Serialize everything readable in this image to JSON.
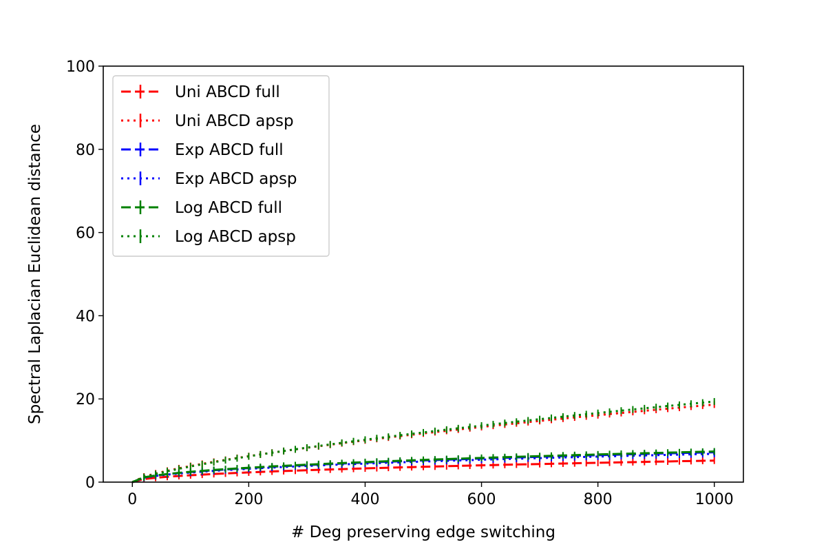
{
  "chart_data": {
    "type": "line",
    "title": "",
    "xlabel": "# Deg preserving edge switching",
    "ylabel": "Spectral Laplacian Euclidean distance",
    "xlim": [
      -50,
      1050
    ],
    "ylim": [
      0,
      100
    ],
    "xticks": [
      0,
      200,
      400,
      600,
      800,
      1000
    ],
    "yticks": [
      0,
      20,
      40,
      60,
      80,
      100
    ],
    "grid": false,
    "legend_position": "top-left",
    "x": [
      0,
      20,
      40,
      60,
      80,
      100,
      120,
      140,
      160,
      180,
      200,
      220,
      240,
      260,
      280,
      300,
      320,
      340,
      360,
      380,
      400,
      420,
      440,
      460,
      480,
      500,
      520,
      540,
      560,
      580,
      600,
      620,
      640,
      660,
      680,
      700,
      720,
      740,
      760,
      780,
      800,
      820,
      840,
      860,
      880,
      900,
      920,
      940,
      960,
      980,
      1000
    ],
    "series": [
      {
        "name": "Uni ABCD full",
        "color": "#ff0000",
        "linestyle": "dashed",
        "values": [
          0.0,
          0.74,
          1.05,
          1.28,
          1.48,
          1.65,
          1.8,
          1.95,
          2.08,
          2.21,
          2.33,
          2.45,
          2.56,
          2.66,
          2.76,
          2.86,
          2.95,
          3.04,
          3.13,
          3.22,
          3.3,
          3.38,
          3.46,
          3.54,
          3.61,
          3.69,
          3.76,
          3.83,
          3.9,
          3.97,
          4.04,
          4.1,
          4.17,
          4.23,
          4.29,
          4.35,
          4.41,
          4.47,
          4.53,
          4.59,
          4.65,
          4.7,
          4.76,
          4.81,
          4.87,
          4.92,
          4.97,
          5.03,
          5.08,
          5.13,
          5.18
        ]
      },
      {
        "name": "Uni ABCD apsp",
        "color": "#ff0000",
        "linestyle": "dotted",
        "values": [
          0.0,
          1.33,
          2.08,
          2.73,
          3.32,
          3.87,
          4.39,
          4.88,
          5.35,
          5.8,
          6.24,
          6.66,
          7.07,
          7.47,
          7.87,
          8.25,
          8.62,
          8.99,
          9.35,
          9.71,
          10.05,
          10.4,
          10.73,
          11.07,
          11.39,
          11.71,
          12.03,
          12.34,
          12.65,
          12.96,
          13.26,
          13.56,
          13.85,
          14.14,
          14.43,
          14.71,
          14.99,
          15.27,
          15.55,
          15.82,
          16.09,
          16.36,
          16.62,
          16.88,
          17.14,
          17.4,
          17.65,
          17.9,
          18.15,
          18.4,
          18.65
        ]
      },
      {
        "name": "Exp ABCD full",
        "color": "#0000ff",
        "linestyle": "dashed",
        "values": [
          0.0,
          1.12,
          1.56,
          1.9,
          2.18,
          2.43,
          2.65,
          2.85,
          3.04,
          3.21,
          3.38,
          3.53,
          3.68,
          3.83,
          3.96,
          4.09,
          4.22,
          4.34,
          4.46,
          4.58,
          4.69,
          4.8,
          4.9,
          5.01,
          5.11,
          5.21,
          5.3,
          5.4,
          5.49,
          5.58,
          5.67,
          5.76,
          5.84,
          5.93,
          6.01,
          6.09,
          6.17,
          6.25,
          6.33,
          6.4,
          6.48,
          6.55,
          6.63,
          6.7,
          6.77,
          6.84,
          6.91,
          6.98,
          7.05,
          7.11,
          7.18
        ]
      },
      {
        "name": "Exp ABCD apsp",
        "color": "#0000ff",
        "linestyle": "dotted",
        "values": [
          0.0,
          1.07,
          1.49,
          1.8,
          2.07,
          2.3,
          2.51,
          2.71,
          2.88,
          3.05,
          3.21,
          3.36,
          3.5,
          3.64,
          3.77,
          3.89,
          4.01,
          4.13,
          4.24,
          4.35,
          4.45,
          4.56,
          4.66,
          4.75,
          4.85,
          4.94,
          5.03,
          5.12,
          5.21,
          5.29,
          5.38,
          5.46,
          5.54,
          5.62,
          5.7,
          5.77,
          5.85,
          5.92,
          6.0,
          6.07,
          6.14,
          6.21,
          6.28,
          6.35,
          6.42,
          6.48,
          6.55,
          6.61,
          6.68,
          6.74,
          6.8
        ]
      },
      {
        "name": "Log ABCD full",
        "color": "#008000",
        "linestyle": "dashed",
        "values": [
          0.0,
          1.15,
          1.6,
          1.95,
          2.24,
          2.49,
          2.72,
          2.93,
          3.12,
          3.3,
          3.46,
          3.62,
          3.78,
          3.92,
          4.06,
          4.2,
          4.33,
          4.45,
          4.58,
          4.69,
          4.81,
          4.92,
          5.03,
          5.14,
          5.24,
          5.34,
          5.44,
          5.54,
          5.63,
          5.73,
          5.82,
          5.91,
          6.0,
          6.08,
          6.17,
          6.25,
          6.33,
          6.41,
          6.49,
          6.57,
          6.65,
          6.73,
          6.8,
          6.88,
          6.95,
          7.02,
          7.09,
          7.16,
          7.23,
          7.3,
          7.37
        ]
      },
      {
        "name": "Log ABCD apsp",
        "color": "#008000",
        "linestyle": "dotted",
        "values": [
          0.0,
          1.22,
          1.95,
          2.61,
          3.2,
          3.76,
          4.29,
          4.79,
          5.28,
          5.74,
          6.2,
          6.64,
          7.06,
          7.48,
          7.89,
          8.29,
          8.68,
          9.07,
          9.45,
          9.82,
          10.19,
          10.55,
          10.9,
          11.25,
          11.6,
          11.94,
          12.28,
          12.61,
          12.94,
          13.26,
          13.58,
          13.9,
          14.21,
          14.52,
          14.83,
          15.13,
          15.43,
          15.73,
          16.03,
          16.32,
          16.61,
          16.9,
          17.18,
          17.46,
          17.74,
          18.02,
          18.3,
          18.57,
          18.84,
          19.11,
          19.38
        ]
      }
    ]
  }
}
